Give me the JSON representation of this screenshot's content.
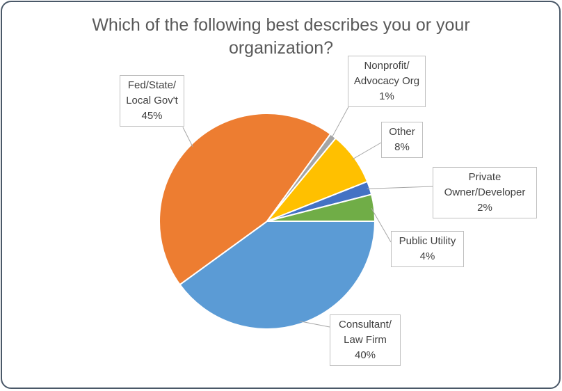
{
  "chart_data": {
    "type": "pie",
    "title": "Which of the following best describes you or your organization?",
    "categories": [
      "Consultant/\nLaw Firm",
      "Fed/State/\nLocal Gov't",
      "Nonprofit/\nAdvocacy Org",
      "Other",
      "Private\nOwner/Developer",
      "Public Utility"
    ],
    "values": [
      40,
      45,
      1,
      8,
      2,
      4
    ],
    "value_labels": [
      "40%",
      "45%",
      "1%",
      "8%",
      "2%",
      "4%"
    ],
    "colors": [
      "#5b9bd5",
      "#ed7d31",
      "#a5a5a5",
      "#ffc000",
      "#4472c4",
      "#70ad47"
    ]
  }
}
